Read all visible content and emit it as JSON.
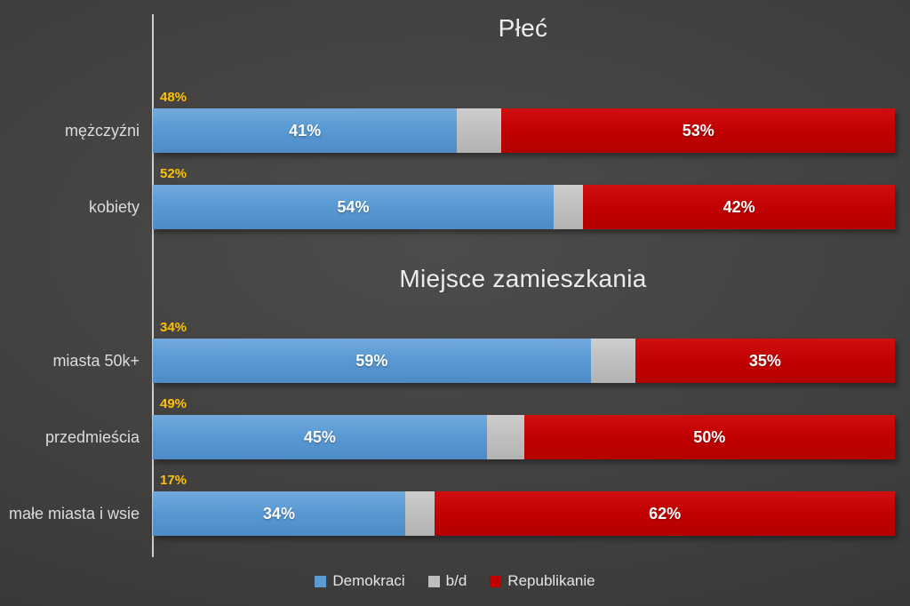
{
  "chart_data": {
    "type": "bar",
    "subtype": "horizontal-stacked",
    "xlim": [
      0,
      100
    ],
    "unit": "%",
    "grid": false,
    "legend_position": "bottom",
    "series": [
      {
        "name": "Demokraci",
        "color": "#5b9bd5"
      },
      {
        "name": "b/d",
        "color": "#bfbfbf"
      },
      {
        "name": "Republikanie",
        "color": "#c00000"
      }
    ],
    "share_label_color": "#ffc000",
    "groups": [
      {
        "title": "Płeć",
        "rows": [
          {
            "category": "mężczyźni",
            "share_label": "48%",
            "values": [
              41,
              6,
              53
            ]
          },
          {
            "category": "kobiety",
            "share_label": "52%",
            "values": [
              54,
              4,
              42
            ]
          }
        ]
      },
      {
        "title": "Miejsce zamieszkania",
        "rows": [
          {
            "category": "miasta 50k+",
            "share_label": "34%",
            "values": [
              59,
              6,
              35
            ]
          },
          {
            "category": "przedmieścia",
            "share_label": "49%",
            "values": [
              45,
              5,
              50
            ]
          },
          {
            "category": "małe miasta i wsie",
            "share_label": "17%",
            "values": [
              34,
              4,
              62
            ]
          }
        ]
      }
    ]
  }
}
